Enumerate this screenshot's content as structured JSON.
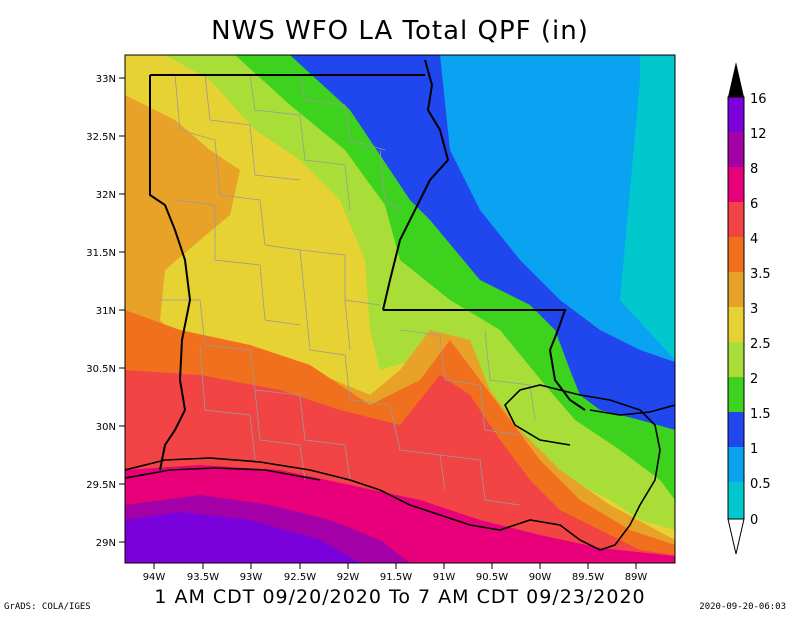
{
  "title": "NWS WFO LA Total QPF (in)",
  "subtitle": "1 AM CDT 09/20/2020 To 7 AM CDT 09/23/2020",
  "credit": "GrADS: COLA/IGES",
  "timestamp": "2020-09-20-06:03",
  "map": {
    "lat_ticks": [
      "33N",
      "32.5N",
      "32N",
      "31.5N",
      "31N",
      "30.5N",
      "30N",
      "29.5N",
      "29N"
    ],
    "lon_ticks": [
      "94W",
      "93.5W",
      "93W",
      "92.5W",
      "92W",
      "91.5W",
      "91W",
      "90.5W",
      "90W",
      "89.5W",
      "89W"
    ]
  },
  "legend": {
    "labels": [
      "16",
      "12",
      "8",
      "6",
      "4",
      "3.5",
      "3",
      "2.5",
      "2",
      "1.5",
      "1",
      "0.5",
      "0"
    ],
    "colors": [
      "#7a00dc",
      "#a300a8",
      "#e8007a",
      "#f24444",
      "#f0701e",
      "#e8a228",
      "#e6d232",
      "#a9de38",
      "#3dd21e",
      "#2046ee",
      "#0aa3f2",
      "#00c8cc"
    ]
  }
}
